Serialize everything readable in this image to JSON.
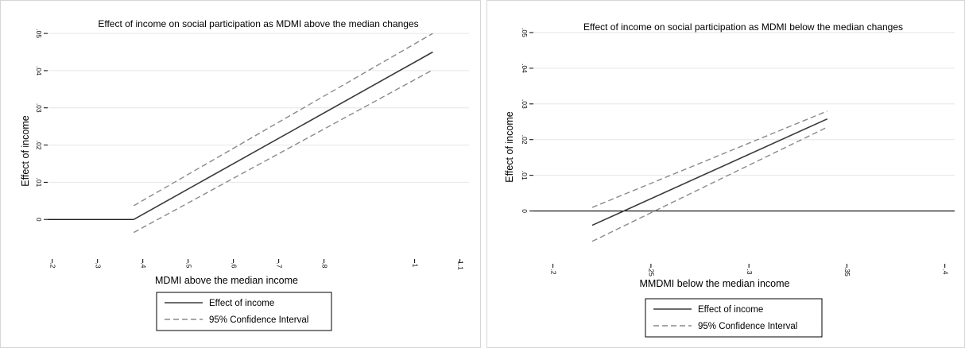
{
  "chart_data": [
    {
      "type": "line",
      "title": "Effect of income on social participation as MDMI above the median changes",
      "xlabel": "MDMI above the median income",
      "ylabel": "Effect of income",
      "x_ticks": [
        ".2",
        ".3",
        ".4",
        ".5",
        ".6",
        ".7",
        ".8",
        "1",
        "1.1"
      ],
      "x_tick_values": [
        0.2,
        0.3,
        0.4,
        0.5,
        0.6,
        0.7,
        0.8,
        1.0,
        1.1
      ],
      "y_ticks": [
        "0",
        ".01",
        ".02",
        ".03",
        ".04",
        ".05"
      ],
      "y_tick_values": [
        0,
        0.01,
        0.02,
        0.03,
        0.04,
        0.05
      ],
      "xlim": [
        0.19,
        1.12
      ],
      "ylim": [
        -0.007,
        0.056
      ],
      "grid": true,
      "legend_position": "bottom",
      "series": [
        {
          "name": "Effect of income",
          "style": "solid",
          "x": [
            0.38,
            1.04
          ],
          "y": [
            0.0,
            0.045
          ]
        },
        {
          "name": "95% Confidence Interval",
          "style": "dashed",
          "x": [
            0.38,
            1.04
          ],
          "y": [
            0.0037,
            0.05
          ]
        },
        {
          "name": "95% Confidence Interval",
          "style": "dashed",
          "x": [
            0.38,
            1.04
          ],
          "y": [
            -0.0035,
            0.0402
          ]
        }
      ],
      "reference_line": {
        "y": 0,
        "x_from": 0.19,
        "x_to": 0.38
      }
    },
    {
      "type": "line",
      "title": "Effect of  income on social participation as MDMI below the median changes",
      "xlabel": "MMDMI below the median income",
      "ylabel": "Effect of income",
      "x_ticks": [
        ".2",
        ".25",
        ".3",
        ".35",
        ".4"
      ],
      "x_tick_values": [
        0.2,
        0.25,
        0.3,
        0.35,
        0.4
      ],
      "y_ticks": [
        "0",
        ".01",
        ".02",
        ".03",
        ".04",
        ".05"
      ],
      "y_tick_values": [
        0,
        0.01,
        0.02,
        0.03,
        0.04,
        0.05
      ],
      "xlim": [
        0.19,
        0.405
      ],
      "ylim": [
        -0.011,
        0.056
      ],
      "grid": true,
      "legend_position": "bottom",
      "series": [
        {
          "name": "Effect of income",
          "style": "solid",
          "x": [
            0.22,
            0.34
          ],
          "y": [
            -0.004,
            0.0258
          ]
        },
        {
          "name": "95% Confidence Interval",
          "style": "dashed",
          "x": [
            0.22,
            0.34
          ],
          "y": [
            0.001,
            0.028
          ]
        },
        {
          "name": "95% Confidence Interval",
          "style": "dashed",
          "x": [
            0.22,
            0.34
          ],
          "y": [
            -0.0085,
            0.0235
          ]
        }
      ],
      "reference_line": {
        "y": 0,
        "x_from": 0.19,
        "x_to": 0.405
      }
    }
  ],
  "legend": {
    "solid_label": "Effect of income",
    "dashed_label": "95% Confidence Interval"
  },
  "colors": {
    "line": "#3a3a3a",
    "ci_line": "#8a8a8a",
    "grid": "#e6e6e6",
    "axis": "#000000"
  }
}
